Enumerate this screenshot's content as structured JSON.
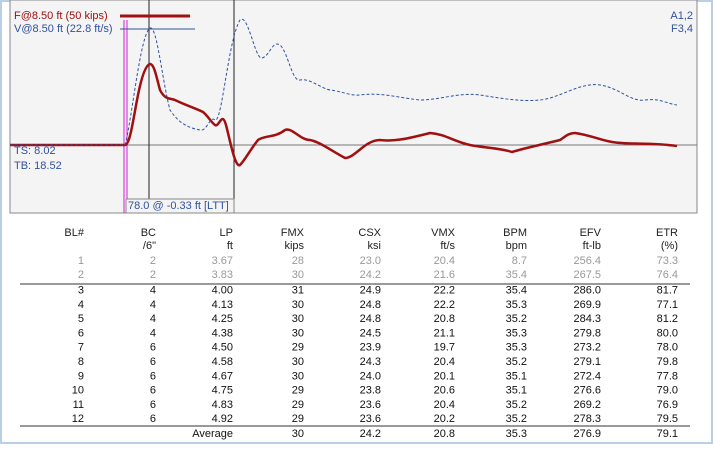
{
  "plot": {
    "force_label": "F@8.50 ft (50 kips)",
    "velocity_label": "V@8.50 ft (22.8 ft/s)",
    "gauges_a": "A1,2",
    "gauges_f": "F3,4",
    "ts": "TS: 8.02",
    "tb": "TB: 18.52",
    "cursor": "78.0 @ -0.33 ft [LTT]"
  },
  "table": {
    "headers": [
      [
        "BL#",
        ""
      ],
      [
        "BC",
        "/6\""
      ],
      [
        "LP",
        "ft"
      ],
      [
        "FMX",
        "kips"
      ],
      [
        "CSX",
        "ksi"
      ],
      [
        "VMX",
        "ft/s"
      ],
      [
        "BPM",
        "bpm"
      ],
      [
        "EFV",
        "ft-lb"
      ],
      [
        "ETR",
        "(%)"
      ]
    ],
    "rows": [
      [
        "1",
        "2",
        "3.67",
        "28",
        "23.0",
        "20.4",
        "8.7",
        "256.4",
        "73.3"
      ],
      [
        "2",
        "2",
        "3.83",
        "30",
        "24.2",
        "21.6",
        "35.4",
        "267.5",
        "76.4"
      ],
      [
        "3",
        "4",
        "4.00",
        "31",
        "24.9",
        "22.2",
        "35.4",
        "286.0",
        "81.7"
      ],
      [
        "4",
        "4",
        "4.13",
        "30",
        "24.8",
        "22.2",
        "35.3",
        "269.9",
        "77.1"
      ],
      [
        "5",
        "4",
        "4.25",
        "30",
        "24.8",
        "20.8",
        "35.2",
        "284.3",
        "81.2"
      ],
      [
        "6",
        "4",
        "4.38",
        "30",
        "24.5",
        "21.1",
        "35.3",
        "279.8",
        "80.0"
      ],
      [
        "7",
        "6",
        "4.50",
        "29",
        "23.9",
        "19.7",
        "35.3",
        "273.2",
        "78.0"
      ],
      [
        "8",
        "6",
        "4.58",
        "30",
        "24.3",
        "20.4",
        "35.2",
        "279.1",
        "79.8"
      ],
      [
        "9",
        "6",
        "4.67",
        "30",
        "24.0",
        "20.1",
        "35.1",
        "272.4",
        "77.8"
      ],
      [
        "10",
        "6",
        "4.75",
        "29",
        "23.8",
        "20.6",
        "35.1",
        "276.6",
        "79.0"
      ],
      [
        "11",
        "6",
        "4.83",
        "29",
        "23.6",
        "20.4",
        "35.2",
        "269.2",
        "76.9"
      ],
      [
        "12",
        "6",
        "4.92",
        "29",
        "23.6",
        "20.2",
        "35.2",
        "278.3",
        "79.5"
      ]
    ],
    "average": [
      "Average",
      "30",
      "24.2",
      "20.8",
      "35.3",
      "276.9",
      "79.1"
    ]
  }
}
